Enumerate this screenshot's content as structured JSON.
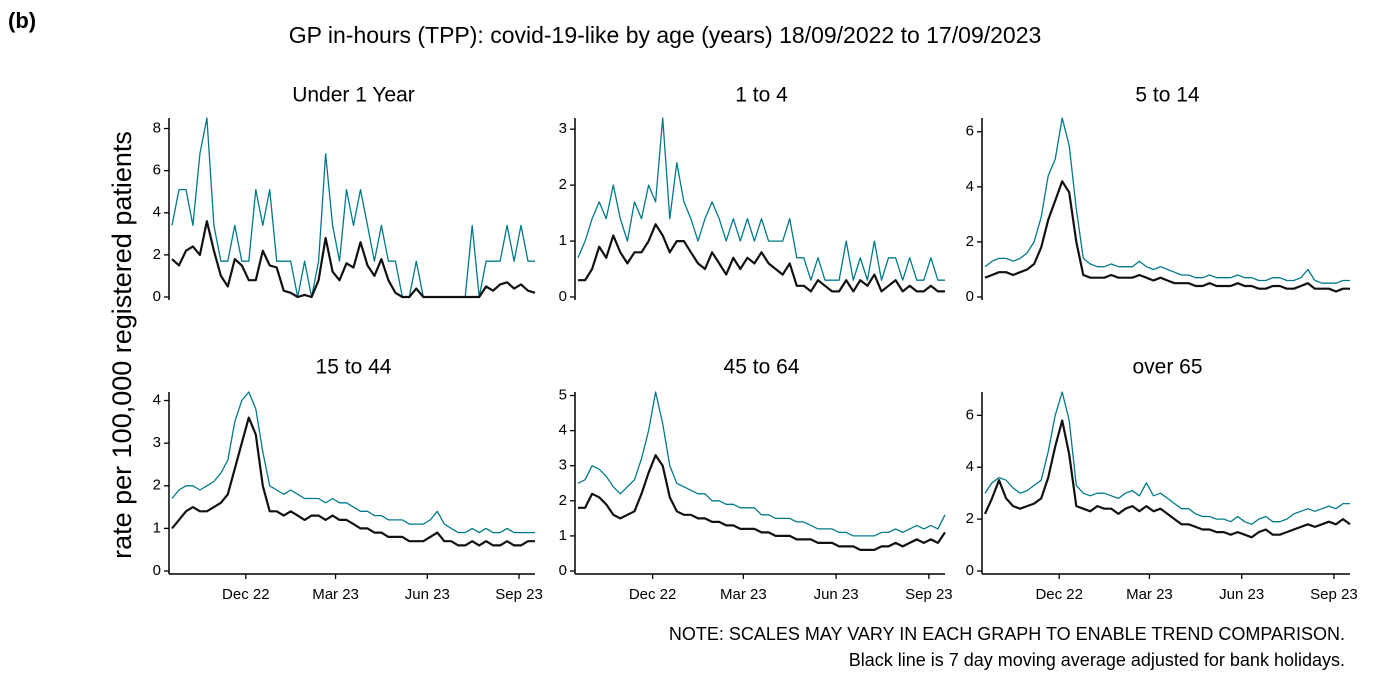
{
  "label": "(b)",
  "title": "GP in-hours (TPP): covid-19-like by age (years) 18/09/2022 to 17/09/2023",
  "y_label": "rate per 100,000 registered patients",
  "notes": [
    "NOTE: SCALES MAY VARY IN EACH GRAPH TO ENABLE TREND COMPARISON.",
    "Black line is 7 day moving average adjusted for bank holidays."
  ],
  "chart_data": [
    {
      "type": "line",
      "title": "Under 1 Year",
      "x": [
        0,
        7,
        14,
        21,
        28,
        35,
        42,
        49,
        56,
        63,
        70,
        77,
        84,
        91,
        98,
        105,
        112,
        119,
        126,
        133,
        140,
        147,
        154,
        161,
        168,
        175,
        182,
        189,
        196,
        203,
        210,
        217,
        224,
        231,
        238,
        245,
        252,
        259,
        266,
        273,
        280,
        287,
        294,
        301,
        308,
        315,
        322,
        329,
        336,
        343,
        350,
        357,
        364
      ],
      "xlim": [
        0,
        364
      ],
      "ylim": [
        0,
        8.5
      ],
      "yticks": [
        0,
        2,
        4,
        6,
        8
      ],
      "series": [
        {
          "color": "#00798c",
          "values": [
            3.4,
            5.1,
            5.1,
            3.4,
            6.8,
            8.5,
            3.4,
            1.7,
            1.7,
            3.4,
            1.7,
            1.7,
            5.1,
            3.4,
            5.1,
            1.7,
            1.7,
            1.7,
            0,
            1.7,
            0,
            1.7,
            6.8,
            3.4,
            1.7,
            5.1,
            3.4,
            5.1,
            3.4,
            1.7,
            3.4,
            1.7,
            1.7,
            0,
            0,
            1.7,
            0,
            0,
            0,
            0,
            0,
            0,
            0,
            3.4,
            0,
            1.7,
            1.7,
            1.7,
            3.4,
            1.7,
            3.4,
            1.7,
            1.7
          ]
        },
        {
          "color": "#111111",
          "values": [
            1.8,
            1.5,
            2.2,
            2.4,
            2.0,
            3.6,
            2.2,
            1.0,
            0.5,
            1.8,
            1.5,
            0.8,
            0.8,
            2.2,
            1.5,
            1.4,
            0.3,
            0.2,
            0,
            0.1,
            0,
            0.8,
            2.8,
            1.2,
            0.8,
            1.6,
            1.4,
            2.6,
            1.5,
            1.0,
            1.8,
            0.8,
            0.2,
            0,
            0,
            0.4,
            0,
            0,
            0,
            0,
            0,
            0,
            0,
            0,
            0,
            0.5,
            0.3,
            0.6,
            0.7,
            0.4,
            0.6,
            0.3,
            0.2
          ]
        }
      ]
    },
    {
      "type": "line",
      "title": "1 to 4",
      "x": [
        0,
        7,
        14,
        21,
        28,
        35,
        42,
        49,
        56,
        63,
        70,
        77,
        84,
        91,
        98,
        105,
        112,
        119,
        126,
        133,
        140,
        147,
        154,
        161,
        168,
        175,
        182,
        189,
        196,
        203,
        210,
        217,
        224,
        231,
        238,
        245,
        252,
        259,
        266,
        273,
        280,
        287,
        294,
        301,
        308,
        315,
        322,
        329,
        336,
        343,
        350,
        357,
        364
      ],
      "xlim": [
        0,
        364
      ],
      "ylim": [
        0,
        3.2
      ],
      "yticks": [
        0,
        1,
        2,
        3
      ],
      "series": [
        {
          "color": "#00798c",
          "values": [
            0.7,
            1.0,
            1.4,
            1.7,
            1.4,
            2.0,
            1.4,
            1.0,
            1.7,
            1.4,
            2.0,
            1.7,
            3.2,
            1.4,
            2.4,
            1.7,
            1.4,
            1.0,
            1.4,
            1.7,
            1.4,
            1.0,
            1.4,
            1.0,
            1.4,
            1.0,
            1.4,
            1.0,
            1.0,
            1.0,
            1.4,
            0.7,
            0.7,
            0.3,
            0.7,
            0.3,
            0.3,
            0.3,
            1.0,
            0.3,
            0.7,
            0.3,
            1.0,
            0.3,
            0.7,
            0.7,
            0.3,
            0.7,
            0.3,
            0.3,
            0.7,
            0.3,
            0.3
          ]
        },
        {
          "color": "#111111",
          "values": [
            0.3,
            0.3,
            0.5,
            0.9,
            0.7,
            1.1,
            0.8,
            0.6,
            0.8,
            0.8,
            1.0,
            1.3,
            1.1,
            0.8,
            1.0,
            1.0,
            0.8,
            0.6,
            0.5,
            0.8,
            0.6,
            0.4,
            0.7,
            0.5,
            0.7,
            0.6,
            0.8,
            0.6,
            0.5,
            0.4,
            0.6,
            0.2,
            0.2,
            0.1,
            0.3,
            0.2,
            0.1,
            0.1,
            0.3,
            0.1,
            0.3,
            0.2,
            0.4,
            0.1,
            0.2,
            0.3,
            0.1,
            0.2,
            0.1,
            0.1,
            0.2,
            0.1,
            0.1
          ]
        }
      ]
    },
    {
      "type": "line",
      "title": "5 to 14",
      "x": [
        0,
        7,
        14,
        21,
        28,
        35,
        42,
        49,
        56,
        63,
        70,
        77,
        84,
        91,
        98,
        105,
        112,
        119,
        126,
        133,
        140,
        147,
        154,
        161,
        168,
        175,
        182,
        189,
        196,
        203,
        210,
        217,
        224,
        231,
        238,
        245,
        252,
        259,
        266,
        273,
        280,
        287,
        294,
        301,
        308,
        315,
        322,
        329,
        336,
        343,
        350,
        357,
        364
      ],
      "xlim": [
        0,
        364
      ],
      "ylim": [
        0,
        6.5
      ],
      "yticks": [
        0,
        2,
        4,
        6
      ],
      "series": [
        {
          "color": "#00798c",
          "values": [
            1.1,
            1.3,
            1.4,
            1.4,
            1.3,
            1.4,
            1.6,
            2.0,
            2.9,
            4.4,
            5.0,
            6.5,
            5.5,
            3.2,
            1.4,
            1.2,
            1.1,
            1.1,
            1.2,
            1.1,
            1.1,
            1.1,
            1.3,
            1.1,
            1.0,
            1.1,
            1.0,
            0.9,
            0.8,
            0.8,
            0.7,
            0.7,
            0.8,
            0.7,
            0.7,
            0.7,
            0.8,
            0.7,
            0.7,
            0.6,
            0.6,
            0.7,
            0.7,
            0.6,
            0.6,
            0.7,
            1.0,
            0.6,
            0.5,
            0.5,
            0.5,
            0.6,
            0.6
          ]
        },
        {
          "color": "#111111",
          "values": [
            0.7,
            0.8,
            0.9,
            0.9,
            0.8,
            0.9,
            1.0,
            1.2,
            1.8,
            2.8,
            3.5,
            4.2,
            3.8,
            2.0,
            0.8,
            0.7,
            0.7,
            0.7,
            0.8,
            0.7,
            0.7,
            0.7,
            0.8,
            0.7,
            0.6,
            0.7,
            0.6,
            0.5,
            0.5,
            0.5,
            0.4,
            0.4,
            0.5,
            0.4,
            0.4,
            0.4,
            0.5,
            0.4,
            0.4,
            0.3,
            0.3,
            0.4,
            0.4,
            0.3,
            0.3,
            0.4,
            0.5,
            0.3,
            0.3,
            0.3,
            0.2,
            0.3,
            0.3
          ]
        }
      ]
    },
    {
      "type": "line",
      "title": "15 to 44",
      "x": [
        0,
        7,
        14,
        21,
        28,
        35,
        42,
        49,
        56,
        63,
        70,
        77,
        84,
        91,
        98,
        105,
        112,
        119,
        126,
        133,
        140,
        147,
        154,
        161,
        168,
        175,
        182,
        189,
        196,
        203,
        210,
        217,
        224,
        231,
        238,
        245,
        252,
        259,
        266,
        273,
        280,
        287,
        294,
        301,
        308,
        315,
        322,
        329,
        336,
        343,
        350,
        357,
        364
      ],
      "xlim": [
        0,
        364
      ],
      "xticks": [
        {
          "value": 74,
          "label": "Dec 22"
        },
        {
          "value": 164,
          "label": "Mar 23"
        },
        {
          "value": 256,
          "label": "Jun 23"
        },
        {
          "value": 348,
          "label": "Sep 23"
        }
      ],
      "ylim": [
        0,
        4.2
      ],
      "yticks": [
        0,
        1,
        2,
        3,
        4
      ],
      "series": [
        {
          "color": "#00798c",
          "values": [
            1.7,
            1.9,
            2.0,
            2.0,
            1.9,
            2.0,
            2.1,
            2.3,
            2.6,
            3.5,
            4.0,
            4.2,
            3.8,
            2.8,
            2.0,
            1.9,
            1.8,
            1.9,
            1.8,
            1.7,
            1.7,
            1.7,
            1.6,
            1.7,
            1.6,
            1.6,
            1.5,
            1.4,
            1.4,
            1.3,
            1.3,
            1.2,
            1.2,
            1.2,
            1.1,
            1.1,
            1.1,
            1.2,
            1.4,
            1.1,
            1.0,
            0.9,
            0.9,
            1.0,
            0.9,
            1.0,
            0.9,
            0.9,
            1.0,
            0.9,
            0.9,
            0.9,
            0.9
          ]
        },
        {
          "color": "#111111",
          "values": [
            1.0,
            1.2,
            1.4,
            1.5,
            1.4,
            1.4,
            1.5,
            1.6,
            1.8,
            2.4,
            3.0,
            3.6,
            3.2,
            2.0,
            1.4,
            1.4,
            1.3,
            1.4,
            1.3,
            1.2,
            1.3,
            1.3,
            1.2,
            1.3,
            1.2,
            1.2,
            1.1,
            1.0,
            1.0,
            0.9,
            0.9,
            0.8,
            0.8,
            0.8,
            0.7,
            0.7,
            0.7,
            0.8,
            0.9,
            0.7,
            0.7,
            0.6,
            0.6,
            0.7,
            0.6,
            0.7,
            0.6,
            0.6,
            0.7,
            0.6,
            0.6,
            0.7,
            0.7
          ]
        }
      ]
    },
    {
      "type": "line",
      "title": "45 to 64",
      "x": [
        0,
        7,
        14,
        21,
        28,
        35,
        42,
        49,
        56,
        63,
        70,
        77,
        84,
        91,
        98,
        105,
        112,
        119,
        126,
        133,
        140,
        147,
        154,
        161,
        168,
        175,
        182,
        189,
        196,
        203,
        210,
        217,
        224,
        231,
        238,
        245,
        252,
        259,
        266,
        273,
        280,
        287,
        294,
        301,
        308,
        315,
        322,
        329,
        336,
        343,
        350,
        357,
        364
      ],
      "xlim": [
        0,
        364
      ],
      "xticks": [
        {
          "value": 74,
          "label": "Dec 22"
        },
        {
          "value": 164,
          "label": "Mar 23"
        },
        {
          "value": 256,
          "label": "Jun 23"
        },
        {
          "value": 348,
          "label": "Sep 23"
        }
      ],
      "ylim": [
        0,
        5.1
      ],
      "yticks": [
        0,
        1,
        2,
        3,
        4,
        5
      ],
      "series": [
        {
          "color": "#00798c",
          "values": [
            2.5,
            2.6,
            3.0,
            2.9,
            2.7,
            2.4,
            2.2,
            2.4,
            2.6,
            3.2,
            4.0,
            5.1,
            4.2,
            3.0,
            2.5,
            2.4,
            2.3,
            2.2,
            2.2,
            2.0,
            2.0,
            1.9,
            1.9,
            1.8,
            1.8,
            1.8,
            1.6,
            1.6,
            1.5,
            1.5,
            1.5,
            1.4,
            1.4,
            1.3,
            1.2,
            1.2,
            1.2,
            1.1,
            1.1,
            1.0,
            1.0,
            1.0,
            1.0,
            1.1,
            1.1,
            1.2,
            1.1,
            1.2,
            1.3,
            1.2,
            1.3,
            1.2,
            1.6
          ]
        },
        {
          "color": "#111111",
          "values": [
            1.8,
            1.8,
            2.2,
            2.1,
            1.9,
            1.6,
            1.5,
            1.6,
            1.7,
            2.2,
            2.8,
            3.3,
            3.0,
            2.1,
            1.7,
            1.6,
            1.6,
            1.5,
            1.5,
            1.4,
            1.4,
            1.3,
            1.3,
            1.2,
            1.2,
            1.2,
            1.1,
            1.1,
            1.0,
            1.0,
            1.0,
            0.9,
            0.9,
            0.9,
            0.8,
            0.8,
            0.8,
            0.7,
            0.7,
            0.7,
            0.6,
            0.6,
            0.6,
            0.7,
            0.7,
            0.8,
            0.7,
            0.8,
            0.9,
            0.8,
            0.9,
            0.8,
            1.1
          ]
        }
      ]
    },
    {
      "type": "line",
      "title": "over 65",
      "x": [
        0,
        7,
        14,
        21,
        28,
        35,
        42,
        49,
        56,
        63,
        70,
        77,
        84,
        91,
        98,
        105,
        112,
        119,
        126,
        133,
        140,
        147,
        154,
        161,
        168,
        175,
        182,
        189,
        196,
        203,
        210,
        217,
        224,
        231,
        238,
        245,
        252,
        259,
        266,
        273,
        280,
        287,
        294,
        301,
        308,
        315,
        322,
        329,
        336,
        343,
        350,
        357,
        364
      ],
      "xlim": [
        0,
        364
      ],
      "xticks": [
        {
          "value": 74,
          "label": "Dec 22"
        },
        {
          "value": 164,
          "label": "Mar 23"
        },
        {
          "value": 256,
          "label": "Jun 23"
        },
        {
          "value": 348,
          "label": "Sep 23"
        }
      ],
      "ylim": [
        0,
        6.9
      ],
      "yticks": [
        0,
        2,
        4,
        6
      ],
      "series": [
        {
          "color": "#00798c",
          "values": [
            3.0,
            3.4,
            3.6,
            3.5,
            3.2,
            3.0,
            3.1,
            3.3,
            3.5,
            4.6,
            6.0,
            6.9,
            5.8,
            3.3,
            3.0,
            2.9,
            3.0,
            3.0,
            2.9,
            2.8,
            3.0,
            3.1,
            2.9,
            3.4,
            2.9,
            3.0,
            2.8,
            2.6,
            2.4,
            2.4,
            2.2,
            2.1,
            2.1,
            2.0,
            2.0,
            1.9,
            2.1,
            1.9,
            1.8,
            2.0,
            2.1,
            1.9,
            1.9,
            2.0,
            2.2,
            2.3,
            2.4,
            2.3,
            2.4,
            2.5,
            2.4,
            2.6,
            2.6
          ]
        },
        {
          "color": "#111111",
          "values": [
            2.2,
            2.8,
            3.5,
            2.8,
            2.5,
            2.4,
            2.5,
            2.6,
            2.8,
            3.6,
            4.8,
            5.8,
            4.5,
            2.5,
            2.4,
            2.3,
            2.5,
            2.4,
            2.4,
            2.2,
            2.4,
            2.5,
            2.3,
            2.5,
            2.3,
            2.4,
            2.2,
            2.0,
            1.8,
            1.8,
            1.7,
            1.6,
            1.6,
            1.5,
            1.5,
            1.4,
            1.5,
            1.4,
            1.3,
            1.5,
            1.6,
            1.4,
            1.4,
            1.5,
            1.6,
            1.7,
            1.8,
            1.7,
            1.8,
            1.9,
            1.8,
            2.0,
            1.8
          ]
        }
      ]
    }
  ]
}
